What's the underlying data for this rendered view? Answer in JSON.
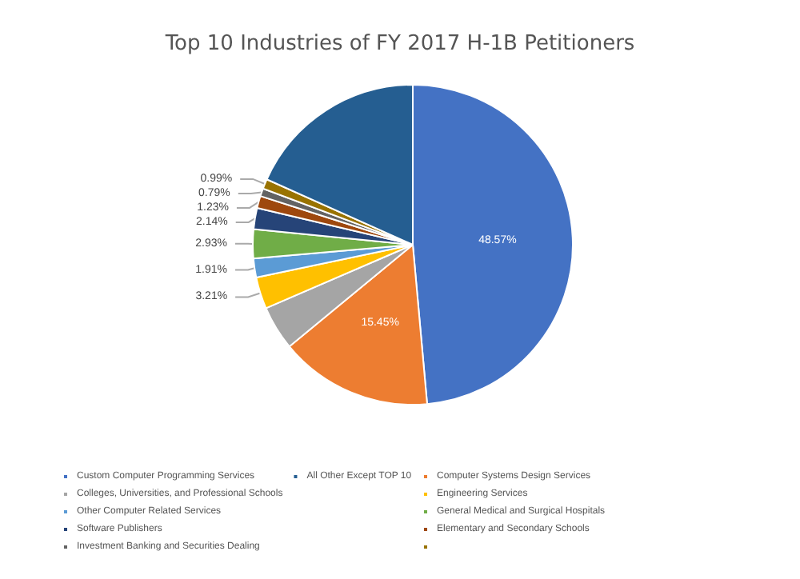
{
  "chart_data": {
    "type": "pie",
    "title": "Top 10 Industries of FY 2017 H-1B Petitioners",
    "categories": [
      "Custom Computer Programming Services",
      "Computer Systems Design Services",
      "Colleges, Universities, and Professional Schools",
      "Engineering Services",
      "Other Computer Related Services",
      "General Medical and Surgical Hospitals",
      "Software Publishers",
      "Elementary and Secondary Schools",
      "Investment Banking and Securities Dealing",
      null,
      "All Other Except TOP 10"
    ],
    "values": [
      48.57,
      15.45,
      4.48,
      3.21,
      1.91,
      2.93,
      2.14,
      1.23,
      0.79,
      0.99,
      18.3
    ],
    "value_labels": [
      "48.57%",
      "15.45%",
      null,
      "3.21%",
      "1.91%",
      "2.93%",
      "2.14%",
      "1.23%",
      "0.79%",
      "0.99%",
      null
    ],
    "colors": [
      "#4472c4",
      "#ed7d31",
      "#a5a5a5",
      "#ffc000",
      "#5b9bd5",
      "#70ad47",
      "#264478",
      "#9e480e",
      "#636363",
      "#997300",
      "#255e91"
    ],
    "legend": "bottom"
  }
}
